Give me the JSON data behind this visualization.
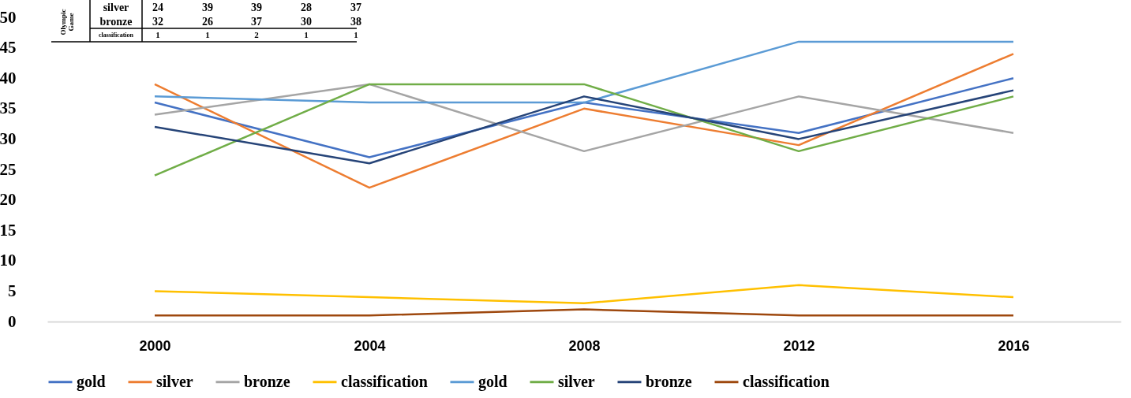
{
  "chart_data": {
    "type": "line",
    "categories": [
      "2000",
      "2004",
      "2008",
      "2012",
      "2016"
    ],
    "series": [
      {
        "name": "gold",
        "color": "#4472c4",
        "values": [
          36,
          27,
          36,
          31,
          40
        ]
      },
      {
        "name": "silver",
        "color": "#ed7d31",
        "values": [
          39,
          22,
          35,
          29,
          44
        ]
      },
      {
        "name": "bronze",
        "color": "#a5a5a5",
        "values": [
          34,
          39,
          28,
          37,
          31
        ]
      },
      {
        "name": "classification",
        "color": "#ffc000",
        "values": [
          5,
          4,
          3,
          6,
          4
        ]
      },
      {
        "name": "gold",
        "color": "#5b9bd5",
        "values": [
          37,
          36,
          36,
          46,
          46
        ]
      },
      {
        "name": "silver",
        "color": "#70ad47",
        "values": [
          24,
          39,
          39,
          28,
          37
        ]
      },
      {
        "name": "bronze",
        "color": "#264478",
        "values": [
          32,
          26,
          37,
          30,
          38
        ]
      },
      {
        "name": "classification",
        "color": "#9e480e",
        "values": [
          1,
          1,
          2,
          1,
          1
        ]
      }
    ],
    "ylim": [
      0,
      50
    ],
    "yticks": [
      0,
      5,
      10,
      15,
      20,
      25,
      30,
      35,
      40,
      45,
      50
    ],
    "grid": false,
    "legend": "bottom",
    "marker": "none",
    "line_style": "solid",
    "annotations": [
      "Olympic",
      "Game",
      "silver",
      "24",
      "39",
      "39",
      "28",
      "37",
      "bronze",
      "32",
      "26",
      "37",
      "30",
      "38",
      "classification",
      "1",
      "1",
      "2",
      "1",
      "1"
    ]
  }
}
